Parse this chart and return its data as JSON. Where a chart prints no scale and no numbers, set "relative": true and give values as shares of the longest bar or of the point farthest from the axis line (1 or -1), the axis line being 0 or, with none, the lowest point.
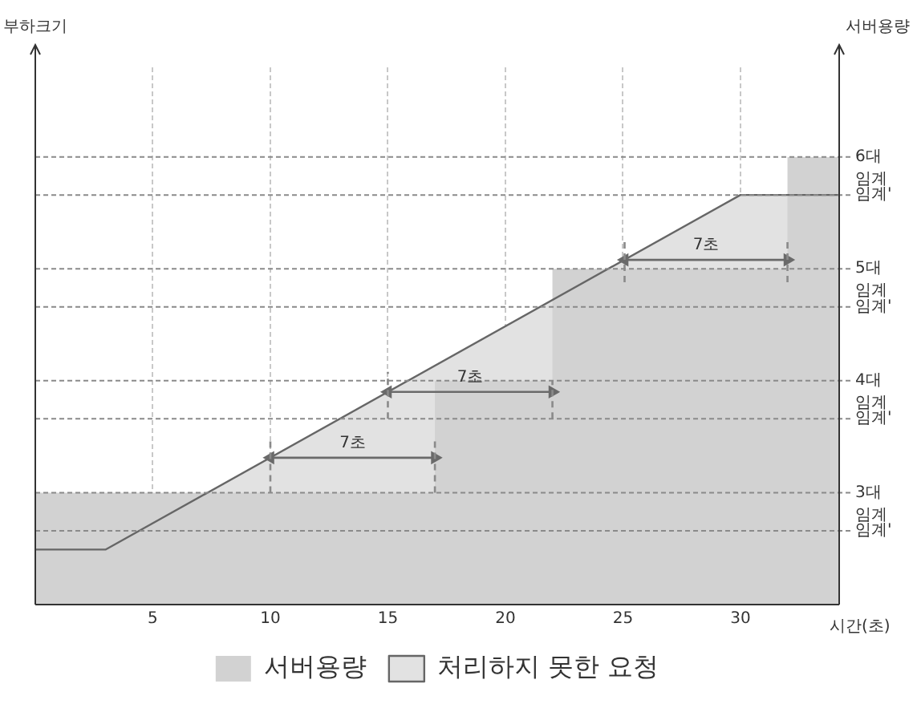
{
  "chart_data": {
    "type": "area",
    "relative": true,
    "xlabel": "시간(초)",
    "xlim": [
      0,
      34.2
    ],
    "xticks": [
      5,
      10,
      15,
      20,
      25,
      30
    ],
    "grid": "x",
    "legend": "bottom",
    "series": [
      {
        "name": "처리하지 못한 요청",
        "color": "#e2e2e2",
        "x": [
          0,
          3,
          30,
          34.2
        ],
        "values": [
          0.123,
          0.123,
          0.915,
          0.915
        ]
      },
      {
        "name": "서버용량",
        "color": "#d2d2d2",
        "x": [
          0,
          17,
          17,
          22,
          22,
          32,
          32,
          34.2
        ],
        "values": [
          0.25,
          0.25,
          0.5,
          0.5,
          0.75,
          0.75,
          1,
          1
        ]
      },
      {
        "type": "line",
        "color": "#6a6a6a",
        "marker": "triangle",
        "x": [
          10,
          17
        ],
        "values": [
          0.328,
          0.328
        ]
      },
      {
        "type": "line",
        "color": "#6a6a6a",
        "marker": "triangle",
        "x": [
          15,
          22
        ],
        "values": [
          0.475,
          0.475
        ]
      },
      {
        "type": "line",
        "color": "#6a6a6a",
        "marker": "triangle",
        "x": [
          25.07,
          32
        ],
        "values": [
          0.77,
          0.77
        ]
      },
      {
        "type": "line",
        "color": "#8a8a8a",
        "line_style": "dashed",
        "x": [
          10,
          10
        ],
        "values": [
          0.25,
          0.37
        ]
      },
      {
        "type": "line",
        "color": "#8a8a8a",
        "line_style": "dashed",
        "x": [
          17,
          17
        ],
        "values": [
          0.25,
          0.37
        ]
      },
      {
        "type": "line",
        "color": "#8a8a8a",
        "line_style": "dashed",
        "x": [
          15,
          15
        ],
        "values": [
          0.415,
          0.52
        ]
      },
      {
        "type": "line",
        "color": "#8a8a8a",
        "line_style": "dashed",
        "x": [
          22,
          22
        ],
        "values": [
          0.415,
          0.5
        ]
      },
      {
        "type": "line",
        "color": "#8a8a8a",
        "line_style": "dashed",
        "x": [
          25.07,
          25.07
        ],
        "values": [
          0.72,
          0.82
        ]
      },
      {
        "type": "line",
        "color": "#8a8a8a",
        "line_style": "dashed",
        "x": [
          32,
          32
        ],
        "values": [
          0.72,
          0.82
        ]
      }
    ],
    "ref_lines": [
      {
        "axis": "y",
        "value": 0.25,
        "label": "3대 임계"
      },
      {
        "axis": "y",
        "value": 0.165,
        "label": "임계'"
      },
      {
        "axis": "y",
        "value": 0.5,
        "label": "4대 임계"
      },
      {
        "axis": "y",
        "value": 0.415,
        "label": "임계'"
      },
      {
        "axis": "y",
        "value": 0.75,
        "label": "5대 임계"
      },
      {
        "axis": "y",
        "value": 0.665,
        "label": "임계'"
      },
      {
        "axis": "y",
        "value": 1,
        "label": "6대 임계"
      },
      {
        "axis": "y",
        "value": 0.915,
        "label": "임계'"
      }
    ],
    "annotations": [
      "부하크기",
      "서버용량",
      {
        "text": "7초",
        "x": 13.5,
        "y": 0.328
      },
      {
        "text": "7초",
        "x": 18.5,
        "y": 0.475
      },
      {
        "text": "7초",
        "x": 28.535,
        "y": 0.77
      }
    ]
  }
}
